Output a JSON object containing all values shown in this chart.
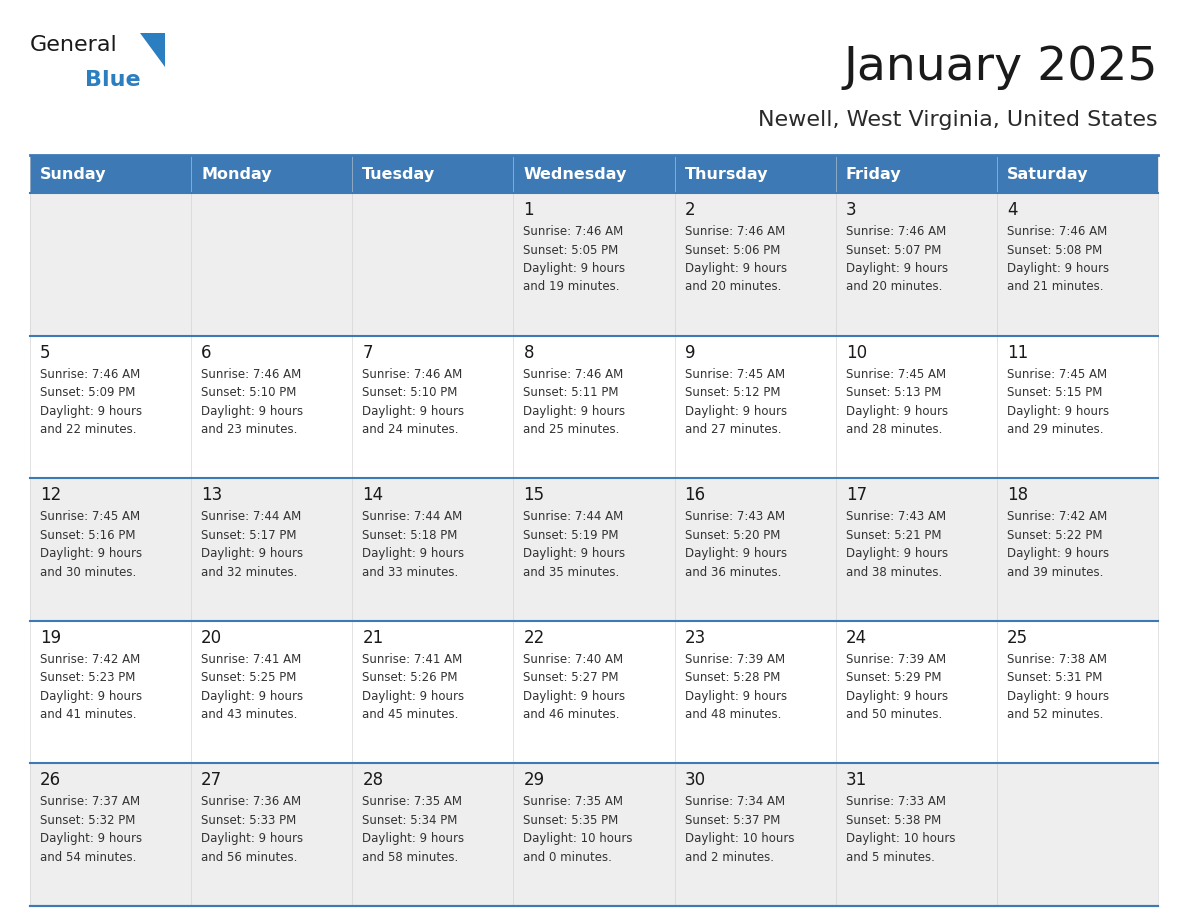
{
  "title": "January 2025",
  "subtitle": "Newell, West Virginia, United States",
  "header_bg": "#3d7ab5",
  "header_text_color": "#ffffff",
  "days_of_week": [
    "Sunday",
    "Monday",
    "Tuesday",
    "Wednesday",
    "Thursday",
    "Friday",
    "Saturday"
  ],
  "cell_bg_light": "#eeeeee",
  "cell_bg_white": "#ffffff",
  "border_color": "#3d7ab5",
  "text_color": "#333333",
  "day_num_color": "#1a1a1a",
  "calendar_data": [
    [
      {
        "day": "",
        "info": ""
      },
      {
        "day": "",
        "info": ""
      },
      {
        "day": "",
        "info": ""
      },
      {
        "day": "1",
        "info": "Sunrise: 7:46 AM\nSunset: 5:05 PM\nDaylight: 9 hours\nand 19 minutes."
      },
      {
        "day": "2",
        "info": "Sunrise: 7:46 AM\nSunset: 5:06 PM\nDaylight: 9 hours\nand 20 minutes."
      },
      {
        "day": "3",
        "info": "Sunrise: 7:46 AM\nSunset: 5:07 PM\nDaylight: 9 hours\nand 20 minutes."
      },
      {
        "day": "4",
        "info": "Sunrise: 7:46 AM\nSunset: 5:08 PM\nDaylight: 9 hours\nand 21 minutes."
      }
    ],
    [
      {
        "day": "5",
        "info": "Sunrise: 7:46 AM\nSunset: 5:09 PM\nDaylight: 9 hours\nand 22 minutes."
      },
      {
        "day": "6",
        "info": "Sunrise: 7:46 AM\nSunset: 5:10 PM\nDaylight: 9 hours\nand 23 minutes."
      },
      {
        "day": "7",
        "info": "Sunrise: 7:46 AM\nSunset: 5:10 PM\nDaylight: 9 hours\nand 24 minutes."
      },
      {
        "day": "8",
        "info": "Sunrise: 7:46 AM\nSunset: 5:11 PM\nDaylight: 9 hours\nand 25 minutes."
      },
      {
        "day": "9",
        "info": "Sunrise: 7:45 AM\nSunset: 5:12 PM\nDaylight: 9 hours\nand 27 minutes."
      },
      {
        "day": "10",
        "info": "Sunrise: 7:45 AM\nSunset: 5:13 PM\nDaylight: 9 hours\nand 28 minutes."
      },
      {
        "day": "11",
        "info": "Sunrise: 7:45 AM\nSunset: 5:15 PM\nDaylight: 9 hours\nand 29 minutes."
      }
    ],
    [
      {
        "day": "12",
        "info": "Sunrise: 7:45 AM\nSunset: 5:16 PM\nDaylight: 9 hours\nand 30 minutes."
      },
      {
        "day": "13",
        "info": "Sunrise: 7:44 AM\nSunset: 5:17 PM\nDaylight: 9 hours\nand 32 minutes."
      },
      {
        "day": "14",
        "info": "Sunrise: 7:44 AM\nSunset: 5:18 PM\nDaylight: 9 hours\nand 33 minutes."
      },
      {
        "day": "15",
        "info": "Sunrise: 7:44 AM\nSunset: 5:19 PM\nDaylight: 9 hours\nand 35 minutes."
      },
      {
        "day": "16",
        "info": "Sunrise: 7:43 AM\nSunset: 5:20 PM\nDaylight: 9 hours\nand 36 minutes."
      },
      {
        "day": "17",
        "info": "Sunrise: 7:43 AM\nSunset: 5:21 PM\nDaylight: 9 hours\nand 38 minutes."
      },
      {
        "day": "18",
        "info": "Sunrise: 7:42 AM\nSunset: 5:22 PM\nDaylight: 9 hours\nand 39 minutes."
      }
    ],
    [
      {
        "day": "19",
        "info": "Sunrise: 7:42 AM\nSunset: 5:23 PM\nDaylight: 9 hours\nand 41 minutes."
      },
      {
        "day": "20",
        "info": "Sunrise: 7:41 AM\nSunset: 5:25 PM\nDaylight: 9 hours\nand 43 minutes."
      },
      {
        "day": "21",
        "info": "Sunrise: 7:41 AM\nSunset: 5:26 PM\nDaylight: 9 hours\nand 45 minutes."
      },
      {
        "day": "22",
        "info": "Sunrise: 7:40 AM\nSunset: 5:27 PM\nDaylight: 9 hours\nand 46 minutes."
      },
      {
        "day": "23",
        "info": "Sunrise: 7:39 AM\nSunset: 5:28 PM\nDaylight: 9 hours\nand 48 minutes."
      },
      {
        "day": "24",
        "info": "Sunrise: 7:39 AM\nSunset: 5:29 PM\nDaylight: 9 hours\nand 50 minutes."
      },
      {
        "day": "25",
        "info": "Sunrise: 7:38 AM\nSunset: 5:31 PM\nDaylight: 9 hours\nand 52 minutes."
      }
    ],
    [
      {
        "day": "26",
        "info": "Sunrise: 7:37 AM\nSunset: 5:32 PM\nDaylight: 9 hours\nand 54 minutes."
      },
      {
        "day": "27",
        "info": "Sunrise: 7:36 AM\nSunset: 5:33 PM\nDaylight: 9 hours\nand 56 minutes."
      },
      {
        "day": "28",
        "info": "Sunrise: 7:35 AM\nSunset: 5:34 PM\nDaylight: 9 hours\nand 58 minutes."
      },
      {
        "day": "29",
        "info": "Sunrise: 7:35 AM\nSunset: 5:35 PM\nDaylight: 10 hours\nand 0 minutes."
      },
      {
        "day": "30",
        "info": "Sunrise: 7:34 AM\nSunset: 5:37 PM\nDaylight: 10 hours\nand 2 minutes."
      },
      {
        "day": "31",
        "info": "Sunrise: 7:33 AM\nSunset: 5:38 PM\nDaylight: 10 hours\nand 5 minutes."
      },
      {
        "day": "",
        "info": ""
      }
    ]
  ],
  "fig_width": 11.88,
  "fig_height": 9.18,
  "dpi": 100
}
